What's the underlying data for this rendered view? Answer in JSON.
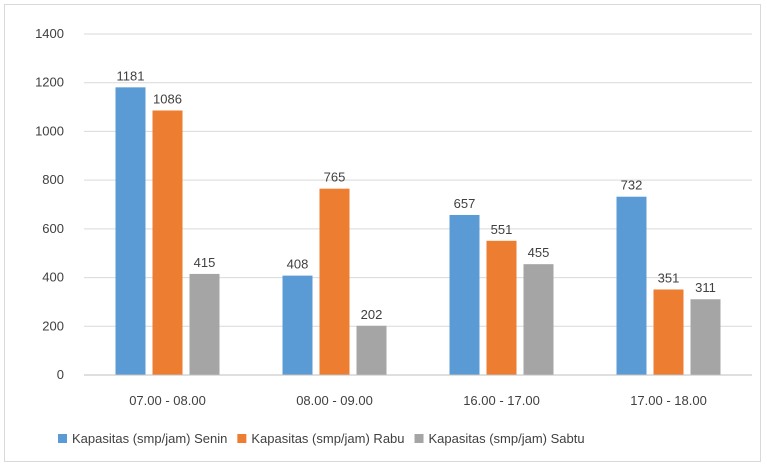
{
  "chart_data": {
    "type": "bar",
    "title": "",
    "xlabel": "",
    "ylabel": "",
    "categories": [
      "07.00 - 08.00",
      "08.00 - 09.00",
      "16.00 - 17.00",
      "17.00 - 18.00"
    ],
    "series": [
      {
        "name": "Kapasitas (smp/jam) Senin",
        "color": "#5b9bd5",
        "values": [
          1181,
          408,
          657,
          732
        ]
      },
      {
        "name": "Kapasitas (smp/jam) Rabu",
        "color": "#ed7d31",
        "values": [
          1086,
          765,
          551,
          351
        ]
      },
      {
        "name": "Kapasitas (smp/jam) Sabtu",
        "color": "#a5a5a5",
        "values": [
          415,
          202,
          455,
          311
        ]
      }
    ],
    "ylim": [
      0,
      1400
    ],
    "yticks": [
      0,
      200,
      400,
      600,
      800,
      1000,
      1200,
      1400
    ],
    "grid": true,
    "legend_position": "bottom",
    "data_labels": true
  }
}
